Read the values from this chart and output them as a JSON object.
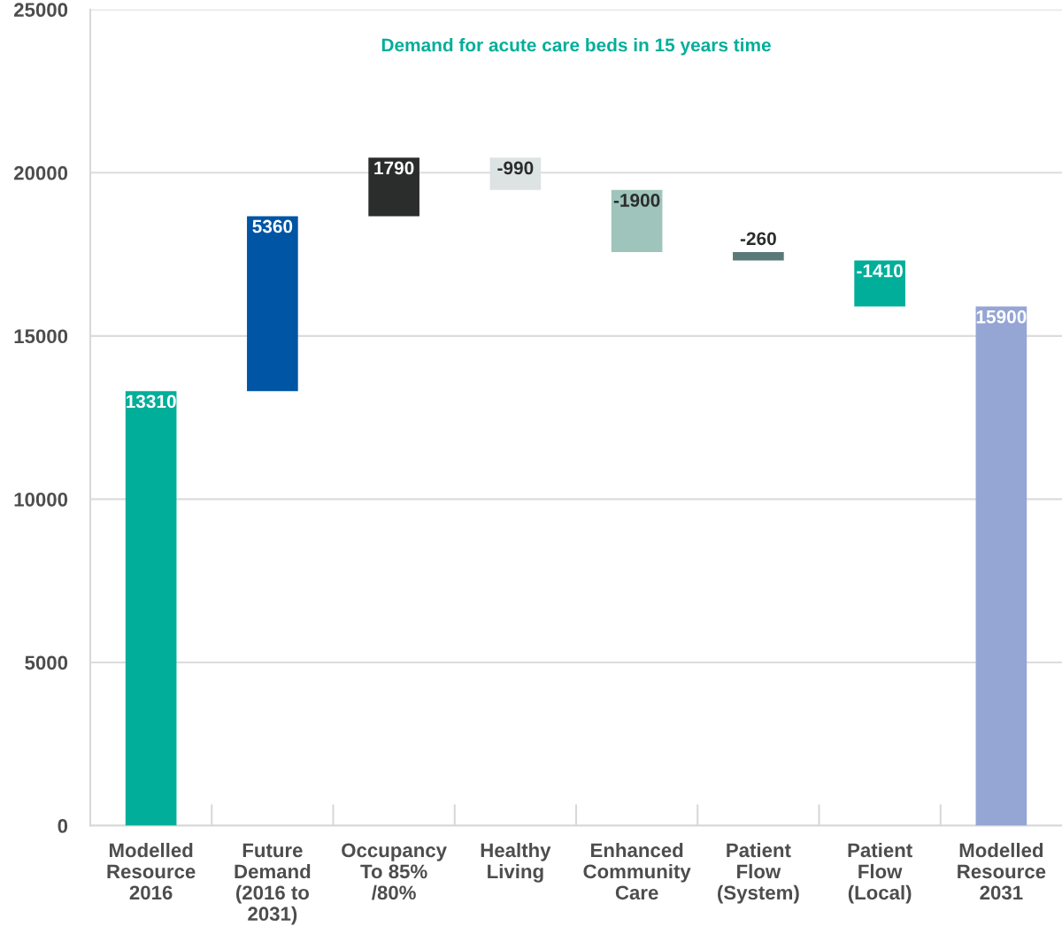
{
  "chart_data": {
    "type": "bar",
    "title": "Demand for acute care beds in 15 years time",
    "categories": [
      "Modelled\nResource\n2016",
      "Future\nDemand\n(2016 to\n2031)",
      "Occupancy\nTo 85%\n/80%",
      "Healthy\nLiving",
      "Enhanced\nCommunity\nCare",
      "Patient\nFlow\n(System)",
      "Patient\nFlow\n(Local)",
      "Modelled\nResource\n2031"
    ],
    "values": [
      13310,
      5360,
      1790,
      -990,
      -1900,
      -260,
      -1410,
      15900
    ],
    "base": [
      0,
      13310,
      18670,
      20460,
      19470,
      17570,
      17310,
      0
    ],
    "colors": [
      "#00ae9a",
      "#0055a4",
      "#2b2d2d",
      "#dde2e2",
      "#9fc4bb",
      "#5a7a78",
      "#00ae9a",
      "#95a5d4"
    ],
    "ylim": [
      0,
      25000
    ],
    "yticks": [
      0,
      5000,
      10000,
      15000,
      20000,
      25000
    ],
    "grid": "y",
    "data_labels": true
  }
}
